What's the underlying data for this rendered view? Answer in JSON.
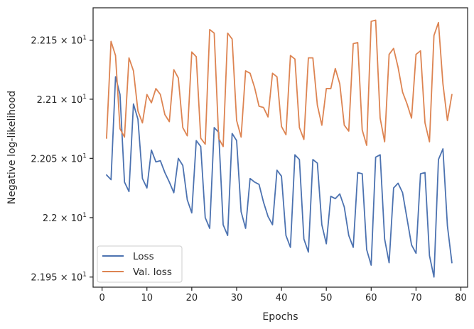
{
  "chart_data": {
    "type": "line",
    "xlabel": "Epochs",
    "ylabel": "Negative log-likelihood",
    "xlim": [
      -2,
      81.5
    ],
    "ylim": [
      21.9415,
      22.1775
    ],
    "yscale": "log",
    "grid": false,
    "legend_position": "lower-left",
    "x_ticks": [
      0,
      10,
      20,
      30,
      40,
      50,
      60,
      70,
      80
    ],
    "x_tick_labels": [
      "0",
      "10",
      "20",
      "30",
      "40",
      "50",
      "60",
      "70",
      "80"
    ],
    "y_ticks": [
      {
        "value": 21.95,
        "mantissa": "2.195",
        "exp": "1"
      },
      {
        "value": 22.0,
        "mantissa": "2.2",
        "exp": "1"
      },
      {
        "value": 22.05,
        "mantissa": "2.205",
        "exp": "1"
      },
      {
        "value": 22.1,
        "mantissa": "2.21",
        "exp": "1"
      },
      {
        "value": 22.15,
        "mantissa": "2.215",
        "exp": "1"
      }
    ],
    "series": [
      {
        "name": "Loss",
        "color": "#4c72b0",
        "x": [
          1,
          2,
          3,
          4,
          5,
          6,
          7,
          8,
          9,
          10,
          11,
          12,
          13,
          14,
          15,
          16,
          17,
          18,
          19,
          20,
          21,
          22,
          23,
          24,
          25,
          26,
          27,
          28,
          29,
          30,
          31,
          32,
          33,
          34,
          35,
          36,
          37,
          38,
          39,
          40,
          41,
          42,
          43,
          44,
          45,
          46,
          47,
          48,
          49,
          50,
          51,
          52,
          53,
          54,
          55,
          56,
          57,
          58,
          59,
          60,
          61,
          62,
          63,
          64,
          65,
          66,
          67,
          68,
          69,
          70,
          71,
          72,
          73,
          74,
          75,
          76,
          77,
          78
        ],
        "values": [
          22.036,
          22.032,
          22.119,
          22.104,
          22.03,
          22.022,
          22.096,
          22.083,
          22.033,
          22.025,
          22.057,
          22.047,
          22.048,
          22.038,
          22.03,
          22.021,
          22.05,
          22.044,
          22.015,
          22.004,
          22.065,
          22.06,
          22,
          21.991,
          22.076,
          22.072,
          21.994,
          21.985,
          22.071,
          22.065,
          22.005,
          21.991,
          22.033,
          22.03,
          22.028,
          22.013,
          22.001,
          21.994,
          22.04,
          22.035,
          21.985,
          21.975,
          22.053,
          22.049,
          21.982,
          21.971,
          22.049,
          22.046,
          21.994,
          21.978,
          22.018,
          22.016,
          22.02,
          22.009,
          21.985,
          21.975,
          22.038,
          22.037,
          21.973,
          21.96,
          22.051,
          22.053,
          21.982,
          21.962,
          22.025,
          22.029,
          22.021,
          21.999,
          21.977,
          21.97,
          22.037,
          22.038,
          21.968,
          21.95,
          22.049,
          22.058,
          21.993,
          21.962
        ]
      },
      {
        "name": "Val. loss",
        "color": "#dd8452",
        "x": [
          1,
          2,
          3,
          4,
          5,
          6,
          7,
          8,
          9,
          10,
          11,
          12,
          13,
          14,
          15,
          16,
          17,
          18,
          19,
          20,
          21,
          22,
          23,
          24,
          25,
          26,
          27,
          28,
          29,
          30,
          31,
          32,
          33,
          34,
          35,
          36,
          37,
          38,
          39,
          40,
          41,
          42,
          43,
          44,
          45,
          46,
          47,
          48,
          49,
          50,
          51,
          52,
          53,
          54,
          55,
          56,
          57,
          58,
          59,
          60,
          61,
          62,
          63,
          64,
          65,
          66,
          67,
          68,
          69,
          70,
          71,
          72,
          73,
          74,
          75,
          76,
          77,
          78
        ],
        "values": [
          22.067,
          22.149,
          22.137,
          22.075,
          22.068,
          22.135,
          22.124,
          22.09,
          22.08,
          22.104,
          22.097,
          22.109,
          22.104,
          22.087,
          22.081,
          22.125,
          22.118,
          22.076,
          22.069,
          22.14,
          22.136,
          22.067,
          22.062,
          22.159,
          22.156,
          22.067,
          22.06,
          22.156,
          22.151,
          22.082,
          22.068,
          22.124,
          22.122,
          22.11,
          22.094,
          22.093,
          22.085,
          22.122,
          22.119,
          22.077,
          22.07,
          22.137,
          22.134,
          22.076,
          22.066,
          22.135,
          22.135,
          22.095,
          22.078,
          22.109,
          22.109,
          22.126,
          22.113,
          22.078,
          22.073,
          22.147,
          22.148,
          22.074,
          22.061,
          22.166,
          22.167,
          22.084,
          22.064,
          22.138,
          22.143,
          22.127,
          22.106,
          22.096,
          22.084,
          22.138,
          22.141,
          22.08,
          22.064,
          22.154,
          22.165,
          22.113,
          22.082,
          22.104
        ]
      }
    ]
  }
}
